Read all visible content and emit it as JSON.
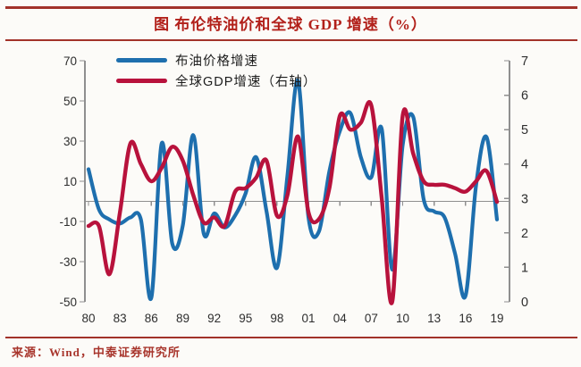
{
  "title": "图 布伦特油价和全球 GDP 增速（%）",
  "source": "来源：Wind，中泰证券研究所",
  "legend": [
    {
      "label": "布油价格增速",
      "color": "#1e6fae"
    },
    {
      "label": "全球GDP增速（右轴）",
      "color": "#b8123c"
    }
  ],
  "colors": {
    "accent_red": "#a2322a",
    "title_red": "#b2201a",
    "oil_line": "#1e6fae",
    "gdp_line": "#b8123c",
    "axis_gray": "#8f8f8f",
    "tick_text": "#2e2e2e",
    "background": "#fcfbf8"
  },
  "chart_data": {
    "type": "line",
    "title": "图 布伦特油价和全球 GDP 增速（%）",
    "x": [
      1980,
      1981,
      1982,
      1983,
      1984,
      1985,
      1986,
      1987,
      1988,
      1989,
      1990,
      1991,
      1992,
      1993,
      1994,
      1995,
      1996,
      1997,
      1998,
      1999,
      2000,
      2001,
      2002,
      2003,
      2004,
      2005,
      2006,
      2007,
      2008,
      2009,
      2010,
      2011,
      2012,
      2013,
      2014,
      2015,
      2016,
      2017,
      2018,
      2019
    ],
    "x_tick_labels": [
      "80",
      "83",
      "86",
      "89",
      "92",
      "95",
      "98",
      "01",
      "04",
      "07",
      "10",
      "13",
      "16",
      "19"
    ],
    "x_tick_years": [
      1980,
      1983,
      1986,
      1989,
      1992,
      1995,
      1998,
      2001,
      2004,
      2007,
      2010,
      2013,
      2016,
      2019
    ],
    "series": [
      {
        "name": "布油价格增速",
        "axis": "left",
        "color": "#1e6fae",
        "values": [
          16,
          -4,
          -9,
          -11,
          -8,
          -9,
          -48,
          29,
          -21,
          -12,
          33,
          -16,
          -6,
          -13,
          -7,
          4,
          22,
          -5,
          -33,
          13,
          60,
          -8,
          -15,
          15,
          35,
          44,
          22,
          12,
          36,
          -34,
          28,
          42,
          1,
          -5,
          -8,
          -26,
          -47,
          8,
          32,
          -9
        ]
      },
      {
        "name": "全球GDP增速（右轴）",
        "axis": "right",
        "color": "#b8123c",
        "values": [
          2.2,
          2.2,
          0.8,
          2.6,
          4.6,
          4.0,
          3.5,
          3.9,
          4.5,
          4.1,
          3.1,
          2.3,
          2.45,
          2.2,
          3.2,
          3.3,
          3.6,
          4.1,
          2.5,
          3.1,
          4.8,
          2.6,
          2.4,
          3.3,
          5.4,
          5.0,
          5.2,
          5.7,
          3.0,
          0.0,
          5.4,
          4.3,
          3.5,
          3.4,
          3.4,
          3.3,
          3.2,
          3.5,
          3.8,
          2.9
        ]
      }
    ],
    "left_axis": {
      "min": -50,
      "max": 70,
      "ticks": [
        70,
        50,
        30,
        10,
        -10,
        -30,
        -50
      ]
    },
    "right_axis": {
      "min": 0,
      "max": 7,
      "ticks": [
        7,
        6,
        5,
        4,
        3,
        2,
        1,
        0
      ]
    },
    "grid": false,
    "legend_position": "top-left-inside",
    "baseline": "left-axis zero line with category tick marks"
  }
}
